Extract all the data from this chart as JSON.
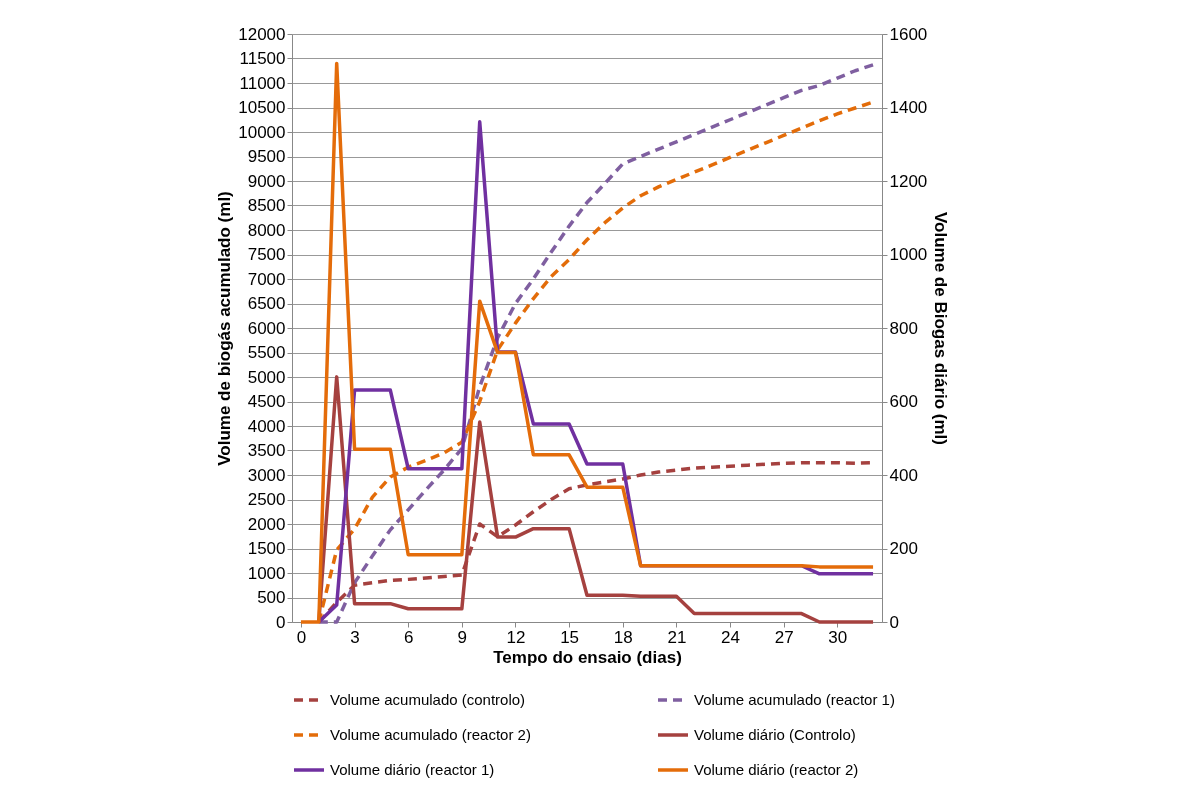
{
  "chart_data": {
    "type": "line",
    "xlabel": "Tempo do ensaio (dias)",
    "ylabel": "Volume de biogás acumulado (ml)",
    "y2label": "Volume de Biogas diário (ml)",
    "x": [
      0,
      1,
      2,
      3,
      4,
      5,
      6,
      7,
      8,
      9,
      10,
      11,
      12,
      13,
      14,
      15,
      16,
      17,
      18,
      19,
      20,
      21,
      22,
      23,
      24,
      25,
      26,
      27,
      28,
      29,
      30,
      31,
      32
    ],
    "xlim": [
      -0.5,
      32.5
    ],
    "xticks": [
      0,
      3,
      6,
      9,
      12,
      15,
      18,
      21,
      24,
      27,
      30
    ],
    "ylim": [
      0,
      12000
    ],
    "yticks": [
      0,
      500,
      1000,
      1500,
      2000,
      2500,
      3000,
      3500,
      4000,
      4500,
      5000,
      5500,
      6000,
      6500,
      7000,
      7500,
      8000,
      8500,
      9000,
      9500,
      10000,
      10500,
      11000,
      11500,
      12000
    ],
    "y2lim": [
      0,
      1600
    ],
    "y2ticks": [
      0,
      200,
      400,
      600,
      800,
      1000,
      1200,
      1400,
      1600
    ],
    "grid": "y",
    "legend": "bottom",
    "marker": "none",
    "series": [
      {
        "name": "Volume acumulado (controlo)",
        "color": "#a5413f",
        "line_style": "dashed",
        "values": [
          null,
          0,
          400,
          750,
          800,
          850,
          870,
          900,
          930,
          960,
          2000,
          1740,
          1980,
          2250,
          2500,
          2720,
          2800,
          2860,
          2920,
          3000,
          3060,
          3100,
          3140,
          3160,
          3180,
          3200,
          3220,
          3240,
          3250,
          3250,
          3250,
          3240,
          3250
        ]
      },
      {
        "name": "Volume acumulado (reactor 1)",
        "color": "#7f5fa0",
        "line_style": "dashed",
        "values": [
          null,
          0,
          0,
          800,
          1350,
          1880,
          2290,
          2700,
          3100,
          3540,
          4800,
          5800,
          6500,
          7000,
          7550,
          8080,
          8560,
          8950,
          9350,
          9500,
          9650,
          9800,
          9950,
          10100,
          10250,
          10400,
          10550,
          10700,
          10850,
          10950,
          11100,
          11250,
          11370
        ]
      },
      {
        "name": "Volume acumulado (reactor 2)",
        "color": "#e36c09",
        "line_style": "dashed",
        "values": [
          null,
          0,
          1470,
          1900,
          2550,
          2960,
          3160,
          3300,
          3450,
          3670,
          4500,
          5550,
          6100,
          6600,
          7050,
          7400,
          7800,
          8150,
          8450,
          8700,
          8880,
          9030,
          9180,
          9330,
          9480,
          9630,
          9780,
          9930,
          10080,
          10230,
          10370,
          10490,
          10610
        ]
      },
      {
        "name": "Volume diário (Controlo)",
        "color": "#a5413f",
        "line_style": "solid",
        "axis": "y2",
        "values": [
          null,
          0,
          667,
          50,
          50,
          50,
          36,
          36,
          36,
          36,
          544,
          231,
          231,
          254,
          254,
          254,
          73,
          73,
          73,
          70,
          70,
          70,
          23,
          23,
          23,
          23,
          23,
          23,
          23,
          0,
          0,
          0,
          0
        ]
      },
      {
        "name": "Volume diário (reactor 1)",
        "color": "#7030a0",
        "line_style": "solid",
        "axis": "y2",
        "values": [
          null,
          0,
          46,
          631,
          631,
          631,
          417,
          417,
          417,
          417,
          1361,
          735,
          735,
          539,
          539,
          539,
          430,
          430,
          430,
          153,
          153,
          153,
          153,
          153,
          153,
          153,
          153,
          153,
          153,
          131,
          131,
          131,
          131
        ]
      },
      {
        "name": "Volume diário (reactor 2)",
        "color": "#e46c0a",
        "line_style": "solid",
        "axis": "y2",
        "values": [
          0,
          0,
          1520,
          470,
          470,
          470,
          183,
          183,
          183,
          183,
          873,
          733,
          733,
          455,
          455,
          455,
          367,
          367,
          367,
          153,
          153,
          153,
          153,
          153,
          153,
          153,
          153,
          153,
          153,
          150,
          150,
          150,
          150
        ]
      }
    ]
  }
}
